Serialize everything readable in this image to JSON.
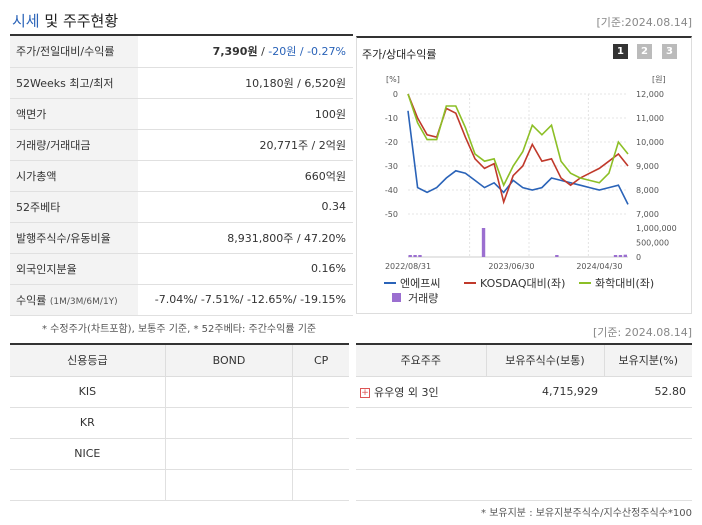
{
  "header": {
    "title_a": "시세",
    "title_b": " 및 주주현황",
    "date": "[기준:2024.08.14]"
  },
  "price_table": [
    {
      "label": "주가/전일대비/수익률",
      "value_main": "7,390원",
      "value_rest": " / ",
      "value_down": "-20원 / -0.27%"
    },
    {
      "label": "52Weeks 최고/최저",
      "value": "10,180원 / 6,520원"
    },
    {
      "label": "액면가",
      "value": "100원"
    },
    {
      "label": "거래량/거래대금",
      "value": "20,771주 / 2억원"
    },
    {
      "label": "시가총액",
      "value": "660억원"
    },
    {
      "label": "52주베타",
      "value": "0.34"
    },
    {
      "label": "발행주식수/유동비율",
      "value": "8,931,800주 / 47.20%"
    },
    {
      "label": "외국인지분율",
      "value": "0.16%"
    },
    {
      "label": "수익률",
      "label_small": "(1M/3M/6M/1Y)",
      "value_down": "-7.04%/ -7.51%/ -12.65%/ -19.15%"
    }
  ],
  "note1": "* 수정주가(차트포함), 보통주 기준, * 52주베타: 주간수익률 기준",
  "chart": {
    "title": "주가/상대수익률",
    "buttons": [
      "1",
      "2",
      "3"
    ],
    "left_unit": "[%]",
    "right_unit": "[원]",
    "legend": [
      "엔에프씨",
      "KOSDAQ대비(좌)",
      "화학대비(좌)",
      "거래량"
    ]
  },
  "chart_data": {
    "type": "line",
    "x_ticks": [
      "2022/08/31",
      "2023/06/30",
      "2024/04/30"
    ],
    "y_left_ticks": [
      "0",
      "-10",
      "-20",
      "-30",
      "-40",
      "-50"
    ],
    "y_left_range": [
      -50,
      0
    ],
    "y_right_ticks": [
      "12,000",
      "11,000",
      "10,000",
      "9,000",
      "8,000",
      "7,000"
    ],
    "y_right_range": [
      7000,
      12000
    ],
    "volume_ticks": [
      "1,000,000",
      "500,000",
      "0"
    ],
    "volume_range": [
      0,
      1000000
    ],
    "series": [
      {
        "name": "엔에프씨",
        "color": "#2a63b8",
        "axis": "right",
        "values": [
          11300,
          8100,
          7900,
          8100,
          8500,
          8800,
          8700,
          8400,
          8100,
          8300,
          7900,
          8400,
          8100,
          8000,
          8100,
          8500,
          8400,
          8300,
          8200,
          8100,
          8000,
          8100,
          8200,
          7400
        ]
      },
      {
        "name": "KOSDAQ대비(좌)",
        "color": "#c0392b",
        "axis": "left",
        "values": [
          0,
          -10,
          -17,
          -18,
          -6,
          -8,
          -18,
          -27,
          -31,
          -29,
          -45,
          -34,
          -30,
          -21,
          -28,
          -27,
          -35,
          -38,
          -35,
          -33,
          -31,
          -28,
          -25,
          -30
        ]
      },
      {
        "name": "화학대비(좌)",
        "color": "#8cbf26",
        "axis": "left",
        "values": [
          0,
          -12,
          -19,
          -19,
          -5,
          -5,
          -14,
          -25,
          -28,
          -27,
          -38,
          -30,
          -24,
          -13,
          -17,
          -13,
          -28,
          -33,
          -35,
          -36,
          -37,
          -33,
          -20,
          -25
        ]
      }
    ],
    "volume": {
      "name": "거래량",
      "color": "#9b6fd0",
      "values": [
        60000,
        10000,
        20000,
        0,
        0,
        0,
        0,
        0,
        0,
        0,
        0,
        0,
        0,
        0,
        0,
        1000000,
        0,
        0,
        0,
        0,
        0,
        0,
        0,
        0,
        0,
        0,
        0,
        0,
        0,
        0,
        20000,
        0,
        0,
        0,
        0,
        0,
        0,
        0,
        0,
        0,
        0,
        0,
        50000,
        20000,
        80000
      ]
    }
  },
  "date2": "[기준: 2024.08.14]",
  "credit": {
    "headers": [
      "신용등급",
      "BOND",
      "CP"
    ],
    "rows": [
      [
        "KIS",
        "",
        ""
      ],
      [
        "KR",
        "",
        ""
      ],
      [
        "NICE",
        "",
        ""
      ],
      [
        "",
        "",
        ""
      ]
    ]
  },
  "holders": {
    "headers": [
      "주요주주",
      "보유주식수(보통)",
      "보유지분(%)"
    ],
    "rows": [
      {
        "name": "유우영 외 3인",
        "shares": "4,715,929",
        "pct": "52.80"
      }
    ],
    "empty_rows": 3
  },
  "note2": "* 보유지분 : 보유지분주식수/지수산정주식수*100",
  "colors": {
    "accent": "#2a63b8",
    "down": "#2a63b8"
  }
}
